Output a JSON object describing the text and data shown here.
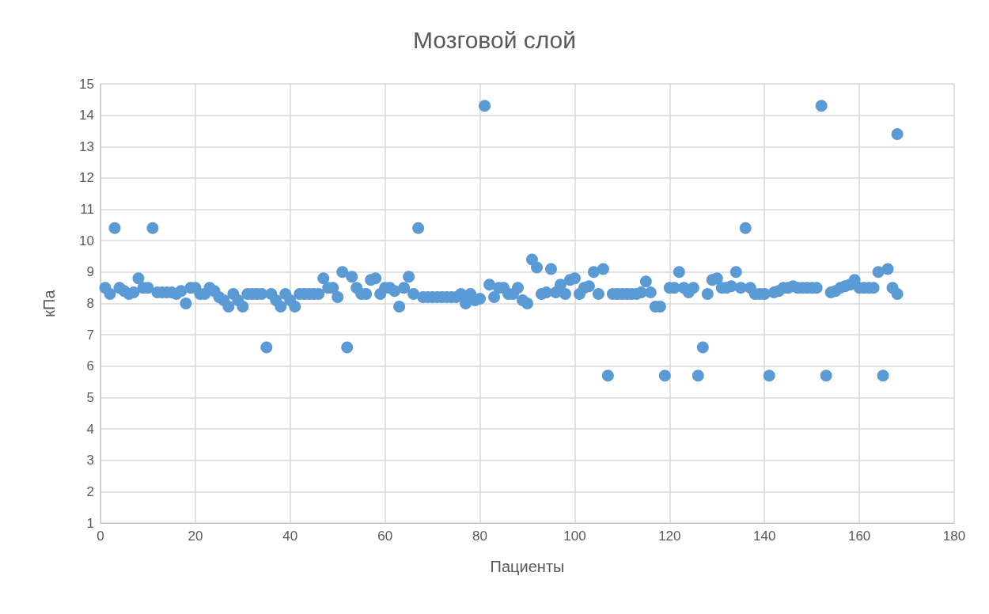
{
  "chart_data": {
    "type": "scatter",
    "title": "Мозговой слой",
    "xlabel": "Пациенты",
    "ylabel": "кПа",
    "x": [
      1,
      2,
      3,
      4,
      5,
      6,
      7,
      8,
      9,
      10,
      11,
      12,
      13,
      14,
      15,
      16,
      17,
      18,
      19,
      20,
      21,
      22,
      23,
      24,
      25,
      26,
      27,
      28,
      29,
      30,
      31,
      32,
      33,
      34,
      35,
      36,
      37,
      38,
      39,
      40,
      41,
      42,
      43,
      44,
      45,
      46,
      47,
      48,
      49,
      50,
      51,
      52,
      53,
      54,
      55,
      56,
      57,
      58,
      59,
      60,
      61,
      62,
      63,
      64,
      65,
      66,
      67,
      68,
      69,
      70,
      71,
      72,
      73,
      74,
      75,
      76,
      77,
      78,
      79,
      80,
      81,
      82,
      83,
      84,
      85,
      86,
      87,
      88,
      89,
      90,
      91,
      92,
      93,
      94,
      95,
      96,
      97,
      98,
      99,
      100,
      101,
      102,
      103,
      104,
      105,
      106,
      107,
      108,
      109,
      110,
      111,
      112,
      113,
      114,
      115,
      116,
      117,
      118,
      119,
      120,
      121,
      122,
      123,
      124,
      125,
      126,
      127,
      128,
      129,
      130,
      131,
      132,
      133,
      134,
      135,
      136,
      137,
      138,
      139,
      140,
      141,
      142,
      143,
      144,
      145,
      146,
      147,
      148,
      149,
      150,
      151,
      152,
      153,
      154,
      155,
      156,
      157,
      158,
      159,
      160,
      161,
      162,
      163,
      164,
      165,
      166,
      167,
      168,
      168
    ],
    "series": [
      {
        "color": "#5b9bd5",
        "values": [
          8.5,
          8.3,
          10.4,
          8.5,
          8.4,
          8.3,
          8.35,
          8.8,
          8.5,
          8.5,
          10.4,
          8.35,
          8.35,
          8.35,
          8.35,
          8.3,
          8.4,
          8.0,
          8.5,
          8.5,
          8.3,
          8.3,
          8.5,
          8.4,
          8.2,
          8.1,
          7.9,
          8.3,
          8.1,
          7.9,
          8.3,
          8.3,
          8.3,
          8.3,
          6.6,
          8.3,
          8.1,
          7.9,
          8.3,
          8.1,
          7.9,
          8.3,
          8.3,
          8.3,
          8.3,
          8.3,
          8.8,
          8.5,
          8.5,
          8.2,
          9.0,
          6.6,
          8.85,
          8.5,
          8.3,
          8.3,
          8.75,
          8.8,
          8.3,
          8.5,
          8.5,
          8.4,
          7.9,
          8.5,
          8.85,
          8.3,
          10.4,
          8.2,
          8.2,
          8.2,
          8.2,
          8.2,
          8.2,
          8.2,
          8.2,
          8.3,
          8.0,
          8.3,
          8.1,
          8.15,
          14.3,
          8.6,
          8.2,
          8.5,
          8.5,
          8.3,
          8.3,
          8.5,
          8.1,
          8.0,
          9.4,
          9.15,
          8.3,
          8.35,
          9.1,
          8.35,
          8.6,
          8.3,
          8.75,
          8.8,
          8.3,
          8.5,
          8.55,
          9.0,
          8.3,
          9.1,
          5.7,
          8.3,
          8.3,
          8.3,
          8.3,
          8.3,
          8.3,
          8.35,
          8.7,
          8.35,
          7.9,
          7.9,
          5.7,
          8.5,
          8.5,
          9.0,
          8.5,
          8.35,
          8.5,
          5.7,
          6.6,
          8.3,
          8.75,
          8.8,
          8.5,
          8.5,
          8.55,
          9.0,
          8.5,
          10.4,
          8.5,
          8.3,
          8.3,
          8.3,
          5.7,
          8.35,
          8.4,
          8.5,
          8.5,
          8.55,
          8.5,
          8.5,
          8.5,
          8.5,
          8.5,
          14.3,
          5.7,
          8.35,
          8.4,
          8.5,
          8.55,
          8.6,
          8.75,
          8.5,
          8.5,
          8.5,
          8.5,
          9.0,
          5.7,
          9.1,
          8.5,
          13.4,
          8.3
        ]
      }
    ],
    "xlim": [
      0,
      180
    ],
    "xticks": [
      0,
      20,
      40,
      60,
      80,
      100,
      120,
      140,
      160,
      180
    ],
    "ylim": [
      1,
      15
    ],
    "yticks": [
      1,
      2,
      3,
      4,
      5,
      6,
      7,
      8,
      9,
      10,
      11,
      12,
      13,
      14,
      15
    ],
    "grid": true,
    "marker": "circle"
  }
}
